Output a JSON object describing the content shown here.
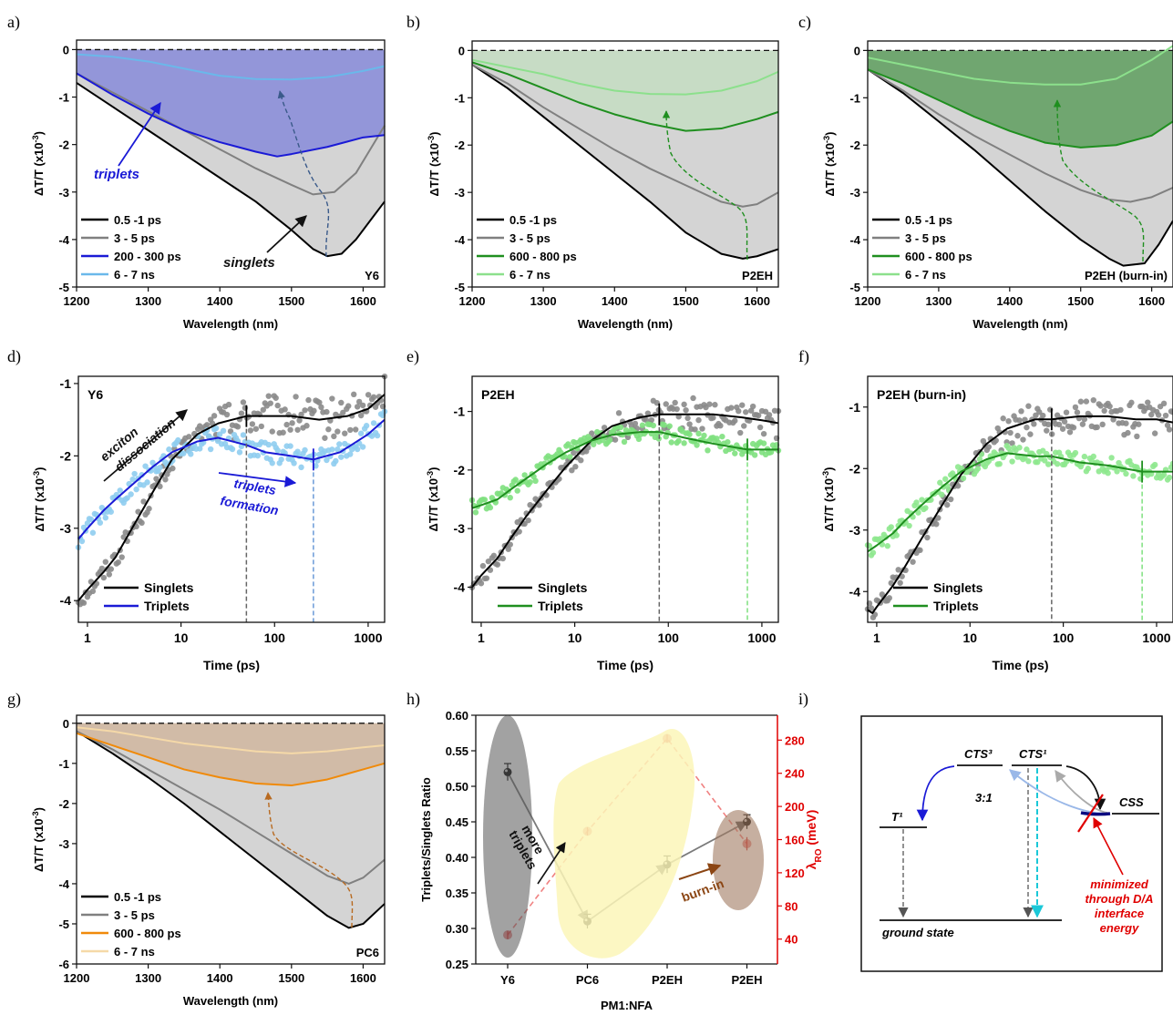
{
  "panel_labels": [
    "a)",
    "b)",
    "c)",
    "d)",
    "e)",
    "f)",
    "g)",
    "h)",
    "i)"
  ],
  "chart_data": [
    {
      "id": "a",
      "type": "area",
      "xlabel": "Wavelength (nm)",
      "ylabel": "ΔT/T (x10⁻³)",
      "xlim": [
        1200,
        1630
      ],
      "ylim": [
        -5,
        0.2
      ],
      "xticks": [
        1200,
        1300,
        1400,
        1500,
        1600
      ],
      "yticks": [
        0,
        -1,
        -2,
        -3,
        -4,
        -5
      ],
      "sample": "Y6",
      "fill_colors": [
        "#d4d4d4",
        "#8f92d9"
      ],
      "series": [
        {
          "name": "0.5 -1 ps",
          "color": "#000000",
          "x": [
            1200,
            1250,
            1300,
            1350,
            1400,
            1450,
            1500,
            1530,
            1550,
            1570,
            1590,
            1610,
            1630
          ],
          "y": [
            -0.7,
            -1.2,
            -1.7,
            -2.2,
            -2.7,
            -3.2,
            -3.8,
            -4.2,
            -4.35,
            -4.3,
            -4.0,
            -3.6,
            -3.2
          ]
        },
        {
          "name": "3 - 5 ps",
          "color": "#808080",
          "x": [
            1200,
            1250,
            1300,
            1350,
            1400,
            1450,
            1500,
            1530,
            1560,
            1590,
            1610,
            1630
          ],
          "y": [
            -0.5,
            -0.9,
            -1.3,
            -1.7,
            -2.1,
            -2.5,
            -2.85,
            -3.05,
            -3.0,
            -2.6,
            -2.1,
            -1.6
          ]
        },
        {
          "name": "200 - 300 ps",
          "color": "#1a1ad6",
          "x": [
            1200,
            1250,
            1300,
            1350,
            1400,
            1450,
            1480,
            1500,
            1550,
            1600,
            1630
          ],
          "y": [
            -0.5,
            -0.95,
            -1.35,
            -1.7,
            -1.95,
            -2.15,
            -2.25,
            -2.2,
            -2.05,
            -1.85,
            -1.8
          ]
        },
        {
          "name": "6 - 7 ns",
          "color": "#6ab8ea",
          "x": [
            1200,
            1250,
            1300,
            1350,
            1400,
            1450,
            1500,
            1550,
            1600,
            1630
          ],
          "y": [
            -0.1,
            -0.15,
            -0.25,
            -0.4,
            -0.55,
            -0.62,
            -0.63,
            -0.58,
            -0.45,
            -0.35
          ]
        }
      ],
      "annotations": [
        "triplets",
        "singlets"
      ]
    },
    {
      "id": "b",
      "type": "area",
      "xlabel": "Wavelength (nm)",
      "ylabel": "ΔT/T (x10⁻³)",
      "xlim": [
        1200,
        1630
      ],
      "ylim": [
        -5,
        0.2
      ],
      "xticks": [
        1200,
        1300,
        1400,
        1500,
        1600
      ],
      "yticks": [
        0,
        -1,
        -2,
        -3,
        -4,
        -5
      ],
      "sample": "P2EH",
      "fill_colors": [
        "#d4d4d4",
        "#c6dcc4"
      ],
      "series": [
        {
          "name": "0.5 -1 ps",
          "color": "#000000",
          "x": [
            1200,
            1250,
            1300,
            1350,
            1400,
            1450,
            1500,
            1550,
            1580,
            1600,
            1630
          ],
          "y": [
            -0.3,
            -0.8,
            -1.4,
            -2.0,
            -2.6,
            -3.2,
            -3.85,
            -4.3,
            -4.4,
            -4.35,
            -4.2
          ]
        },
        {
          "name": "3 - 5 ps",
          "color": "#808080",
          "x": [
            1200,
            1250,
            1300,
            1350,
            1400,
            1450,
            1500,
            1550,
            1580,
            1600,
            1630
          ],
          "y": [
            -0.3,
            -0.7,
            -1.2,
            -1.65,
            -2.1,
            -2.5,
            -2.85,
            -3.2,
            -3.3,
            -3.25,
            -3.0
          ]
        },
        {
          "name": "600 - 800 ps",
          "color": "#1f8f1f",
          "x": [
            1200,
            1250,
            1300,
            1350,
            1400,
            1450,
            1500,
            1550,
            1600,
            1630
          ],
          "y": [
            -0.25,
            -0.5,
            -0.8,
            -1.1,
            -1.35,
            -1.55,
            -1.7,
            -1.65,
            -1.45,
            -1.3
          ]
        },
        {
          "name": "6 - 7 ns",
          "color": "#8ce08c",
          "x": [
            1200,
            1250,
            1300,
            1350,
            1400,
            1450,
            1500,
            1550,
            1600,
            1630
          ],
          "y": [
            -0.2,
            -0.35,
            -0.5,
            -0.7,
            -0.85,
            -0.92,
            -0.93,
            -0.85,
            -0.65,
            -0.45
          ]
        }
      ]
    },
    {
      "id": "c",
      "type": "area",
      "xlabel": "Wavelength (nm)",
      "ylabel": "ΔT/T (x10⁻³)",
      "xlim": [
        1200,
        1630
      ],
      "ylim": [
        -5,
        0.2
      ],
      "xticks": [
        1200,
        1300,
        1400,
        1500,
        1600
      ],
      "yticks": [
        0,
        -1,
        -2,
        -3,
        -4,
        -5
      ],
      "sample": "P2EH (burn-in)",
      "fill_colors": [
        "#d4d4d4",
        "#6aa36a"
      ],
      "series": [
        {
          "name": "0.5 -1 ps",
          "color": "#000000",
          "x": [
            1200,
            1250,
            1300,
            1350,
            1400,
            1450,
            1500,
            1540,
            1560,
            1590,
            1610,
            1630
          ],
          "y": [
            -0.4,
            -0.9,
            -1.5,
            -2.1,
            -2.75,
            -3.4,
            -4.0,
            -4.4,
            -4.55,
            -4.5,
            -4.1,
            -3.6
          ]
        },
        {
          "name": "3 - 5 ps",
          "color": "#808080",
          "x": [
            1200,
            1250,
            1300,
            1350,
            1400,
            1450,
            1500,
            1540,
            1570,
            1600,
            1630
          ],
          "y": [
            -0.4,
            -0.85,
            -1.35,
            -1.8,
            -2.2,
            -2.6,
            -2.95,
            -3.15,
            -3.2,
            -3.1,
            -2.9
          ]
        },
        {
          "name": "600 - 800 ps",
          "color": "#1f8f1f",
          "x": [
            1200,
            1250,
            1300,
            1350,
            1400,
            1450,
            1500,
            1550,
            1600,
            1630
          ],
          "y": [
            -0.4,
            -0.7,
            -1.05,
            -1.4,
            -1.7,
            -1.95,
            -2.05,
            -2.0,
            -1.8,
            -1.5
          ]
        },
        {
          "name": "6 - 7 ns",
          "color": "#8ce08c",
          "x": [
            1200,
            1250,
            1300,
            1350,
            1400,
            1450,
            1500,
            1550,
            1600,
            1630
          ],
          "y": [
            -0.15,
            -0.3,
            -0.45,
            -0.6,
            -0.68,
            -0.72,
            -0.72,
            -0.6,
            -0.2,
            0.1
          ]
        }
      ]
    },
    {
      "id": "d",
      "type": "scatter",
      "xlabel": "Time (ps)",
      "ylabel": "ΔT/T (x10⁻³)",
      "xscale": "log",
      "xlim": [
        0.8,
        1500
      ],
      "ylim": [
        -4.3,
        -0.9
      ],
      "xticks": [
        1,
        10,
        100,
        1000
      ],
      "yticks": [
        -1,
        -2,
        -3,
        -4
      ],
      "sample": "Y6",
      "series": [
        {
          "name": "Singlets",
          "color": "#000000",
          "point_color": "#8a8a8a",
          "x": [
            0.8,
            1,
            1.5,
            2,
            3,
            5,
            8,
            15,
            25,
            50,
            80,
            150,
            300,
            600,
            1000,
            1500
          ],
          "y": [
            -4.0,
            -3.85,
            -3.6,
            -3.4,
            -3.0,
            -2.5,
            -2.05,
            -1.7,
            -1.55,
            -1.45,
            -1.45,
            -1.45,
            -1.5,
            -1.45,
            -1.35,
            -1.15
          ]
        },
        {
          "name": "Triplets",
          "color": "#1a1ad6",
          "point_color": "#8fcdf0",
          "x": [
            0.8,
            1,
            1.5,
            2,
            3,
            5,
            8,
            15,
            25,
            50,
            80,
            150,
            260,
            500,
            1000,
            1500
          ],
          "y": [
            -3.15,
            -3.0,
            -2.75,
            -2.6,
            -2.4,
            -2.15,
            -1.95,
            -1.8,
            -1.75,
            -1.85,
            -1.95,
            -2.0,
            -2.05,
            -1.95,
            -1.7,
            -1.5
          ]
        }
      ],
      "markers_x": [
        50,
        260
      ],
      "annotations": [
        "exciton",
        "dissociation",
        "triplets",
        "formation"
      ]
    },
    {
      "id": "e",
      "type": "scatter",
      "xlabel": "Time (ps)",
      "ylabel": "ΔT/T (x10⁻³)",
      "xscale": "log",
      "xlim": [
        0.8,
        1500
      ],
      "ylim": [
        -4.6,
        -0.4
      ],
      "xticks": [
        1,
        10,
        100,
        1000
      ],
      "yticks": [
        -1,
        -2,
        -3,
        -4
      ],
      "sample": "P2EH",
      "series": [
        {
          "name": "Singlets",
          "color": "#000000",
          "point_color": "#8a8a8a",
          "x": [
            0.8,
            1,
            1.5,
            2,
            3,
            5,
            8,
            15,
            25,
            50,
            80,
            150,
            300,
            600,
            1000,
            1500
          ],
          "y": [
            -4.0,
            -3.8,
            -3.5,
            -3.2,
            -2.8,
            -2.35,
            -1.95,
            -1.5,
            -1.25,
            -1.1,
            -1.05,
            -1.05,
            -1.05,
            -1.1,
            -1.15,
            -1.2
          ]
        },
        {
          "name": "Triplets",
          "color": "#1f8f1f",
          "point_color": "#7ee07e",
          "x": [
            0.8,
            1,
            1.5,
            2,
            3,
            5,
            8,
            15,
            25,
            50,
            80,
            150,
            300,
            700,
            1000,
            1500
          ],
          "y": [
            -2.65,
            -2.6,
            -2.5,
            -2.35,
            -2.15,
            -1.9,
            -1.7,
            -1.5,
            -1.4,
            -1.35,
            -1.35,
            -1.45,
            -1.55,
            -1.65,
            -1.65,
            -1.65
          ]
        }
      ],
      "markers_x": [
        80,
        700
      ]
    },
    {
      "id": "f",
      "type": "scatter",
      "xlabel": "Time (ps)",
      "ylabel": "ΔT/T (x10⁻³)",
      "xscale": "log",
      "xlim": [
        0.8,
        1500
      ],
      "ylim": [
        -4.5,
        -0.5
      ],
      "xticks": [
        1,
        10,
        100,
        1000
      ],
      "yticks": [
        -1,
        -2,
        -3,
        -4
      ],
      "sample": "P2EH (burn-in)",
      "series": [
        {
          "name": "Singlets",
          "color": "#000000",
          "point_color": "#8a8a8a",
          "x": [
            0.8,
            0.9,
            1,
            1.5,
            2,
            3,
            5,
            8,
            15,
            25,
            50,
            75,
            150,
            300,
            600,
            1000,
            1500
          ],
          "y": [
            -4.3,
            -4.35,
            -4.25,
            -3.9,
            -3.6,
            -3.15,
            -2.6,
            -2.1,
            -1.6,
            -1.35,
            -1.2,
            -1.2,
            -1.15,
            -1.15,
            -1.2,
            -1.2,
            -1.25
          ]
        },
        {
          "name": "Triplets",
          "color": "#1f8f1f",
          "point_color": "#8ee88e",
          "x": [
            0.8,
            1,
            1.5,
            2,
            3,
            5,
            8,
            15,
            25,
            50,
            75,
            150,
            300,
            700,
            1000,
            1500
          ],
          "y": [
            -3.35,
            -3.25,
            -3.05,
            -2.85,
            -2.6,
            -2.3,
            -2.05,
            -1.85,
            -1.75,
            -1.8,
            -1.8,
            -1.9,
            -1.95,
            -2.05,
            -2.05,
            -2.05
          ]
        }
      ],
      "markers_x": [
        75,
        700
      ]
    },
    {
      "id": "g",
      "type": "area",
      "xlabel": "Wavelength (nm)",
      "ylabel": "ΔT/T (x10⁻³)",
      "xlim": [
        1200,
        1630
      ],
      "ylim": [
        -6,
        0.2
      ],
      "xticks": [
        1200,
        1300,
        1400,
        1500,
        1600
      ],
      "yticks": [
        0,
        -1,
        -2,
        -3,
        -4,
        -5,
        -6
      ],
      "sample": "PC6",
      "fill_colors": [
        "#d4d4d4",
        "#d1b9a4"
      ],
      "series": [
        {
          "name": "0.5 -1 ps",
          "color": "#000000",
          "x": [
            1200,
            1250,
            1300,
            1350,
            1400,
            1450,
            1500,
            1550,
            1580,
            1600,
            1630
          ],
          "y": [
            -0.2,
            -0.75,
            -1.35,
            -2.0,
            -2.7,
            -3.4,
            -4.1,
            -4.8,
            -5.1,
            -5.0,
            -4.5
          ]
        },
        {
          "name": "3 - 5 ps",
          "color": "#808080",
          "x": [
            1200,
            1250,
            1300,
            1350,
            1400,
            1450,
            1500,
            1550,
            1580,
            1600,
            1630
          ],
          "y": [
            -0.2,
            -0.65,
            -1.15,
            -1.65,
            -2.15,
            -2.7,
            -3.25,
            -3.8,
            -4.0,
            -3.85,
            -3.4
          ]
        },
        {
          "name": "600 - 800 ps",
          "color": "#f08a0a",
          "x": [
            1200,
            1250,
            1300,
            1350,
            1400,
            1450,
            1500,
            1550,
            1600,
            1630
          ],
          "y": [
            -0.25,
            -0.55,
            -0.85,
            -1.15,
            -1.35,
            -1.5,
            -1.55,
            -1.4,
            -1.15,
            -1.0
          ]
        },
        {
          "name": "6 - 7 ns",
          "color": "#f5d9a8",
          "x": [
            1200,
            1250,
            1300,
            1350,
            1400,
            1450,
            1500,
            1550,
            1600,
            1630
          ],
          "y": [
            -0.1,
            -0.2,
            -0.35,
            -0.5,
            -0.6,
            -0.7,
            -0.75,
            -0.7,
            -0.6,
            -0.55
          ]
        }
      ]
    },
    {
      "id": "h",
      "type": "scatter",
      "xlabel": "PM1:NFA",
      "ylabel": "Triplets/Singlets Ratio",
      "y2label": "λRO (meV)",
      "categories": [
        "Y6",
        "PC6",
        "P2EH",
        "P2EH"
      ],
      "ylim": [
        0.25,
        0.6
      ],
      "yticks": [
        0.25,
        0.3,
        0.35,
        0.4,
        0.45,
        0.5,
        0.55,
        0.6
      ],
      "y2lim": [
        10,
        310
      ],
      "y2ticks": [
        40,
        80,
        120,
        160,
        200,
        240,
        280
      ],
      "series": [
        {
          "name": "",
          "color": "#7a7a7a",
          "marker_color": "#111111",
          "values": [
            0.52,
            0.31,
            0.39,
            0.45
          ],
          "errors": [
            0.012,
            0.01,
            0.012,
            0.01
          ]
        },
        {
          "name": "",
          "color": "#f08080",
          "marker_color": "#e03030",
          "axis": "right",
          "values": [
            45,
            170,
            282,
            155
          ],
          "errors": [
            5,
            5,
            5,
            8
          ]
        }
      ],
      "annotations": [
        "more",
        "triplets",
        "burn-in"
      ]
    },
    {
      "id": "i",
      "type": "diagram",
      "labels": {
        "cts3": "CTS³",
        "cts1": "CTS¹",
        "t1": "T¹",
        "css": "CSS",
        "ratio": "3:1",
        "ground": "ground state",
        "note_lines": [
          "minimized",
          "through D/A",
          "interface",
          "energy"
        ]
      }
    }
  ]
}
